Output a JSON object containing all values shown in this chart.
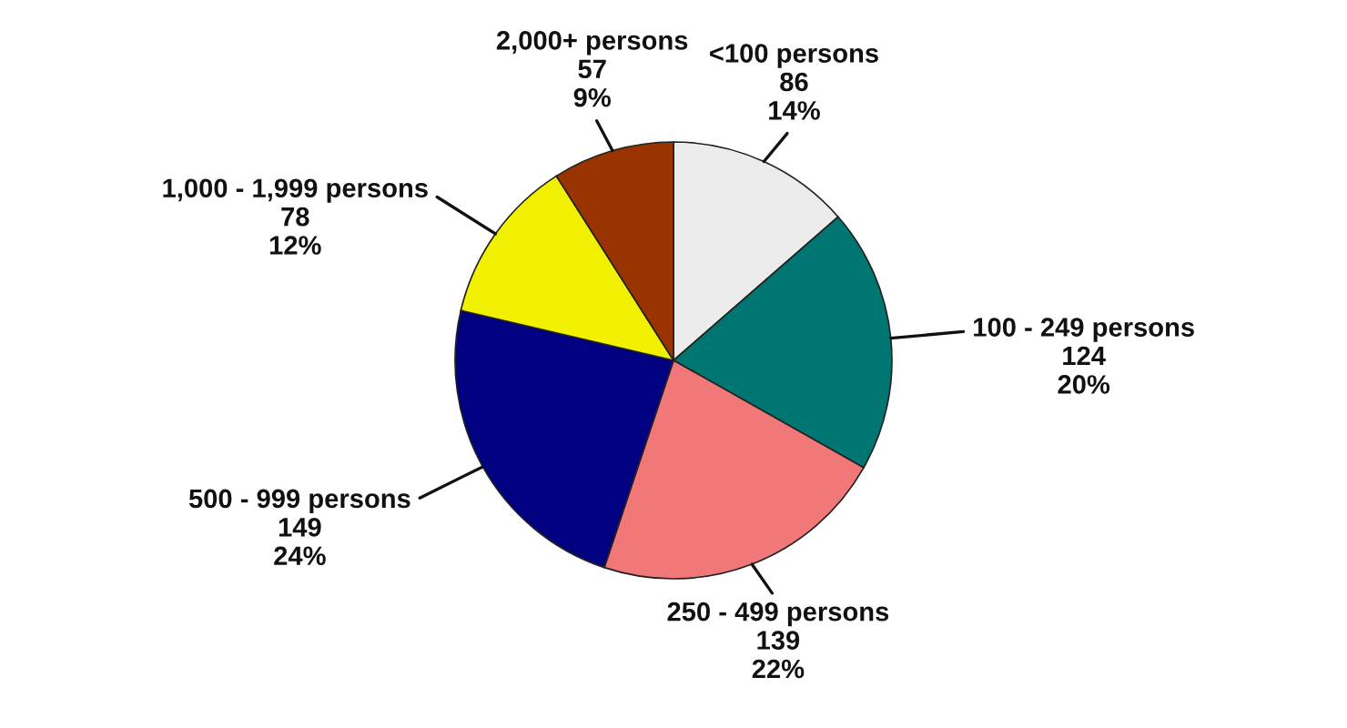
{
  "chart_data": {
    "type": "pie",
    "categories": [
      "<100 persons",
      "100 - 249 persons",
      "250 - 499 persons",
      "500 - 999 persons",
      "1,000 - 1,999 persons",
      "2,000+ persons"
    ],
    "values": [
      86,
      124,
      139,
      149,
      78,
      57
    ],
    "colors": [
      "#ececec",
      "#007672",
      "#f07878",
      "#000080",
      "#f0f000",
      "#993300"
    ],
    "value_labels": [
      "86\n14%",
      "124\n20%",
      "139\n22%",
      "149\n24%",
      "78\n12%",
      "57\n9%"
    ]
  }
}
